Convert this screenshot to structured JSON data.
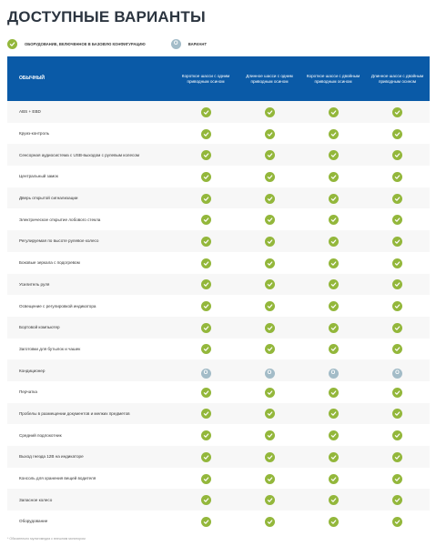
{
  "title": "ДОСТУПНЫЕ ВАРИАНТЫ",
  "legend": {
    "standard_icon": "check-icon",
    "standard_label": "ОБОРУДОВАНИЕ, ВКЛЮЧЕННОЕ В БАЗОВУЮ КОНФИГУРАЦИЮ",
    "option_icon": "option-icon",
    "option_glyph": "O",
    "option_label": "ВАРИАНТ"
  },
  "table": {
    "group_label": "ОБЫЧНЫЙ",
    "columns": [
      "Короткое шасси с одним приводным осином",
      "Длинное шасси с одним приводным осином",
      "Короткое шасси с двойным приводным осином",
      "Длинное шасси с двойным приводным осином"
    ],
    "rows": [
      {
        "feature": "ABS + EBD",
        "values": [
          "S",
          "S",
          "S",
          "S"
        ]
      },
      {
        "feature": "Круиз-контроль",
        "values": [
          "S",
          "S",
          "S",
          "S"
        ]
      },
      {
        "feature": "Сенсорная аудиосистема с USB-выходом с рулевым колесом",
        "values": [
          "S",
          "S",
          "S",
          "S"
        ]
      },
      {
        "feature": "Центральный замок",
        "values": [
          "S",
          "S",
          "S",
          "S"
        ]
      },
      {
        "feature": "Дверь открытой сигнализации",
        "values": [
          "S",
          "S",
          "S",
          "S"
        ]
      },
      {
        "feature": "Электрическое открытие лобового стекла",
        "values": [
          "S",
          "S",
          "S",
          "S"
        ]
      },
      {
        "feature": "Регулируемая по высоте рулевое колесо",
        "values": [
          "S",
          "S",
          "S",
          "S"
        ]
      },
      {
        "feature": "Боковые зеркала с подогревом",
        "values": [
          "S",
          "S",
          "S",
          "S"
        ]
      },
      {
        "feature": "Усилитель руля",
        "values": [
          "S",
          "S",
          "S",
          "S"
        ]
      },
      {
        "feature": "Освещение с регулировкой индикатора",
        "values": [
          "S",
          "S",
          "S",
          "S"
        ]
      },
      {
        "feature": "Бортовой компьютер",
        "values": [
          "S",
          "S",
          "S",
          "S"
        ]
      },
      {
        "feature": "Заготовки для бутылок и чашек",
        "values": [
          "S",
          "S",
          "S",
          "S"
        ]
      },
      {
        "feature": "Кондиционер",
        "values": [
          "O",
          "O",
          "O",
          "O"
        ]
      },
      {
        "feature": "Перчатка",
        "values": [
          "S",
          "S",
          "S",
          "S"
        ]
      },
      {
        "feature": "Пробелы в размещении документов и мелких предметов",
        "values": [
          "S",
          "S",
          "S",
          "S"
        ]
      },
      {
        "feature": "Средний подлокотник",
        "values": [
          "S",
          "S",
          "S",
          "S"
        ]
      },
      {
        "feature": "Выход гнезда 12В на индикаторе",
        "values": [
          "S",
          "S",
          "S",
          "S"
        ]
      },
      {
        "feature": "Консоль для хранения вещей водителя",
        "values": [
          "S",
          "S",
          "S",
          "S"
        ]
      },
      {
        "feature": "Запасное колесо",
        "values": [
          "S",
          "S",
          "S",
          "S"
        ]
      },
      {
        "feature": "Оборудование",
        "values": [
          "S",
          "S",
          "S",
          "S"
        ]
      }
    ]
  },
  "footnote": "* Обязательно мультимедиа с внешним монитором",
  "colors": {
    "header_bg": "#0a5aa7",
    "standard": "#93b73b",
    "option": "#a3bcc8"
  }
}
